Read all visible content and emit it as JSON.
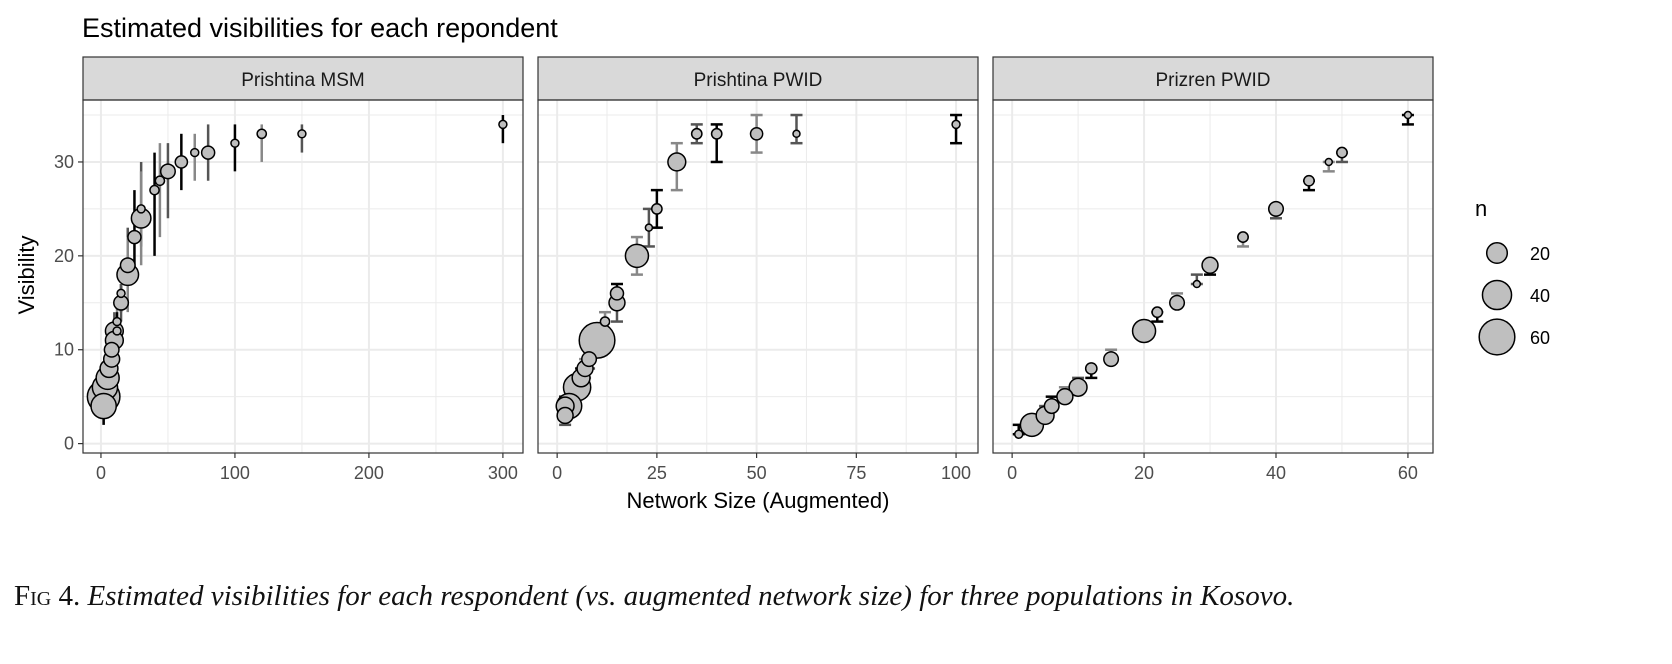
{
  "chart_data": {
    "type": "scatter",
    "title": "Estimated visibilities for each repondent",
    "xlabel": "Network Size (Augmented)",
    "ylabel": "Visibility",
    "ylim": [
      -1,
      36.6
    ],
    "yticks": [
      0,
      10,
      20,
      30
    ],
    "grid": true,
    "legend": {
      "title": "n",
      "placement": "right",
      "sizes": [
        20,
        40,
        60
      ]
    },
    "colors": {
      "point_fill": "#bfbfbf",
      "point_stroke": "#000000",
      "strip_bg": "#d9d9d9",
      "errorbar": "#555555"
    },
    "panels": [
      {
        "label": "Prishtina MSM",
        "xlim": [
          -13.4,
          315
        ],
        "xticks": [
          0,
          100,
          200,
          300
        ],
        "points": [
          {
            "x": 300,
            "y": 34,
            "n": 3,
            "lo": 32,
            "hi": 35
          },
          {
            "x": 150,
            "y": 33,
            "n": 3,
            "lo": 31,
            "hi": 34
          },
          {
            "x": 120,
            "y": 33,
            "n": 4,
            "lo": 30,
            "hi": 34
          },
          {
            "x": 100,
            "y": 32,
            "n": 3,
            "lo": 29,
            "hi": 34
          },
          {
            "x": 80,
            "y": 31,
            "n": 8,
            "lo": 28,
            "hi": 34
          },
          {
            "x": 70,
            "y": 31,
            "n": 3,
            "lo": 28,
            "hi": 33
          },
          {
            "x": 60,
            "y": 30,
            "n": 7,
            "lo": 27,
            "hi": 33
          },
          {
            "x": 50,
            "y": 29,
            "n": 10,
            "lo": 24,
            "hi": 32
          },
          {
            "x": 44,
            "y": 28,
            "n": 4,
            "lo": 22,
            "hi": 32
          },
          {
            "x": 40,
            "y": 27,
            "n": 4,
            "lo": 20,
            "hi": 31
          },
          {
            "x": 30,
            "y": 25,
            "n": 3,
            "lo": 21,
            "hi": 30
          },
          {
            "x": 30,
            "y": 24,
            "n": 18,
            "lo": 19,
            "hi": 29
          },
          {
            "x": 25,
            "y": 22,
            "n": 8,
            "lo": 18,
            "hi": 27
          },
          {
            "x": 20,
            "y": 19,
            "n": 10,
            "lo": 17,
            "hi": 23
          },
          {
            "x": 20,
            "y": 18,
            "n": 22,
            "lo": 14,
            "hi": 22
          },
          {
            "x": 15,
            "y": 16,
            "n": 3,
            "lo": 14,
            "hi": 17
          },
          {
            "x": 15,
            "y": 15,
            "n": 10,
            "lo": 13,
            "hi": 17
          },
          {
            "x": 12,
            "y": 13,
            "n": 3,
            "lo": 11,
            "hi": 15
          },
          {
            "x": 12,
            "y": 12,
            "n": 3,
            "lo": 11,
            "hi": 14
          },
          {
            "x": 10,
            "y": 12,
            "n": 15,
            "lo": 10,
            "hi": 14
          },
          {
            "x": 10,
            "y": 11,
            "n": 15,
            "lo": 9,
            "hi": 13
          },
          {
            "x": 8,
            "y": 10,
            "n": 10,
            "lo": 8,
            "hi": 12
          },
          {
            "x": 8,
            "y": 9,
            "n": 12,
            "lo": 7,
            "hi": 11
          },
          {
            "x": 6,
            "y": 8,
            "n": 15,
            "lo": 6,
            "hi": 10
          },
          {
            "x": 5,
            "y": 7,
            "n": 25,
            "lo": 5,
            "hi": 9
          },
          {
            "x": 3,
            "y": 6,
            "n": 30,
            "lo": 4,
            "hi": 8
          },
          {
            "x": 2,
            "y": 5,
            "n": 50,
            "lo": 2,
            "hi": 7
          },
          {
            "x": 2,
            "y": 4,
            "n": 30,
            "lo": 2,
            "hi": 6
          }
        ]
      },
      {
        "label": "Prishtina PWID",
        "xlim": [
          -4.8,
          105.5
        ],
        "xticks": [
          0,
          25,
          50,
          75,
          100
        ],
        "points": [
          {
            "x": 100,
            "y": 34,
            "n": 3,
            "lo": 32,
            "hi": 35
          },
          {
            "x": 60,
            "y": 33,
            "n": 2,
            "lo": 32,
            "hi": 35
          },
          {
            "x": 50,
            "y": 33,
            "n": 7,
            "lo": 31,
            "hi": 35
          },
          {
            "x": 40,
            "y": 33,
            "n": 5,
            "lo": 30,
            "hi": 34
          },
          {
            "x": 35,
            "y": 33,
            "n": 5,
            "lo": 32,
            "hi": 34
          },
          {
            "x": 30,
            "y": 30,
            "n": 15,
            "lo": 27,
            "hi": 32
          },
          {
            "x": 25,
            "y": 25,
            "n": 5,
            "lo": 23,
            "hi": 27
          },
          {
            "x": 23,
            "y": 23,
            "n": 2,
            "lo": 21,
            "hi": 25
          },
          {
            "x": 20,
            "y": 20,
            "n": 25,
            "lo": 18,
            "hi": 22
          },
          {
            "x": 15,
            "y": 16,
            "n": 8,
            "lo": 15,
            "hi": 17
          },
          {
            "x": 15,
            "y": 15,
            "n": 12,
            "lo": 13,
            "hi": 16
          },
          {
            "x": 12,
            "y": 13,
            "n": 4,
            "lo": 12,
            "hi": 14
          },
          {
            "x": 10,
            "y": 11,
            "n": 60,
            "lo": 10,
            "hi": 12
          },
          {
            "x": 8,
            "y": 9,
            "n": 10,
            "lo": 8,
            "hi": 10
          },
          {
            "x": 7,
            "y": 8,
            "n": 12,
            "lo": 7,
            "hi": 9
          },
          {
            "x": 6,
            "y": 7,
            "n": 15,
            "lo": 6,
            "hi": 8
          },
          {
            "x": 5,
            "y": 6,
            "n": 35,
            "lo": 5,
            "hi": 7
          },
          {
            "x": 3,
            "y": 4,
            "n": 30,
            "lo": 3,
            "hi": 5
          },
          {
            "x": 2,
            "y": 4,
            "n": 15,
            "lo": 3,
            "hi": 5
          },
          {
            "x": 2,
            "y": 3,
            "n": 12,
            "lo": 2,
            "hi": 4
          }
        ]
      },
      {
        "label": "Prizren PWID",
        "xlim": [
          -2.9,
          63.8
        ],
        "xticks": [
          0,
          20,
          40,
          60
        ],
        "points": [
          {
            "x": 60,
            "y": 35,
            "n": 2,
            "lo": 34,
            "hi": 35
          },
          {
            "x": 50,
            "y": 31,
            "n": 5,
            "lo": 30,
            "hi": 31
          },
          {
            "x": 48,
            "y": 30,
            "n": 2,
            "lo": 29,
            "hi": 30
          },
          {
            "x": 45,
            "y": 28,
            "n": 5,
            "lo": 27,
            "hi": 28
          },
          {
            "x": 40,
            "y": 25,
            "n": 10,
            "lo": 24,
            "hi": 25
          },
          {
            "x": 35,
            "y": 22,
            "n": 5,
            "lo": 21,
            "hi": 22
          },
          {
            "x": 30,
            "y": 19,
            "n": 12,
            "lo": 18,
            "hi": 19
          },
          {
            "x": 28,
            "y": 17,
            "n": 2,
            "lo": 17,
            "hi": 18
          },
          {
            "x": 25,
            "y": 15,
            "n": 10,
            "lo": 15,
            "hi": 16
          },
          {
            "x": 22,
            "y": 14,
            "n": 5,
            "lo": 13,
            "hi": 14
          },
          {
            "x": 20,
            "y": 12,
            "n": 25,
            "lo": 11,
            "hi": 12
          },
          {
            "x": 15,
            "y": 9,
            "n": 10,
            "lo": 9,
            "hi": 10
          },
          {
            "x": 12,
            "y": 8,
            "n": 6,
            "lo": 7,
            "hi": 8
          },
          {
            "x": 10,
            "y": 6,
            "n": 15,
            "lo": 6,
            "hi": 7
          },
          {
            "x": 8,
            "y": 5,
            "n": 12,
            "lo": 5,
            "hi": 6
          },
          {
            "x": 6,
            "y": 4,
            "n": 10,
            "lo": 4,
            "hi": 5
          },
          {
            "x": 5,
            "y": 3,
            "n": 15,
            "lo": 3,
            "hi": 4
          },
          {
            "x": 3,
            "y": 2,
            "n": 25,
            "lo": 2,
            "hi": 3
          },
          {
            "x": 1,
            "y": 1,
            "n": 3,
            "lo": 1,
            "hi": 2
          }
        ]
      }
    ]
  },
  "caption": {
    "label": "Fig 4.",
    "text": "Estimated visibilities for each respondent (vs. augmented network size) for three populations in Kosovo."
  }
}
